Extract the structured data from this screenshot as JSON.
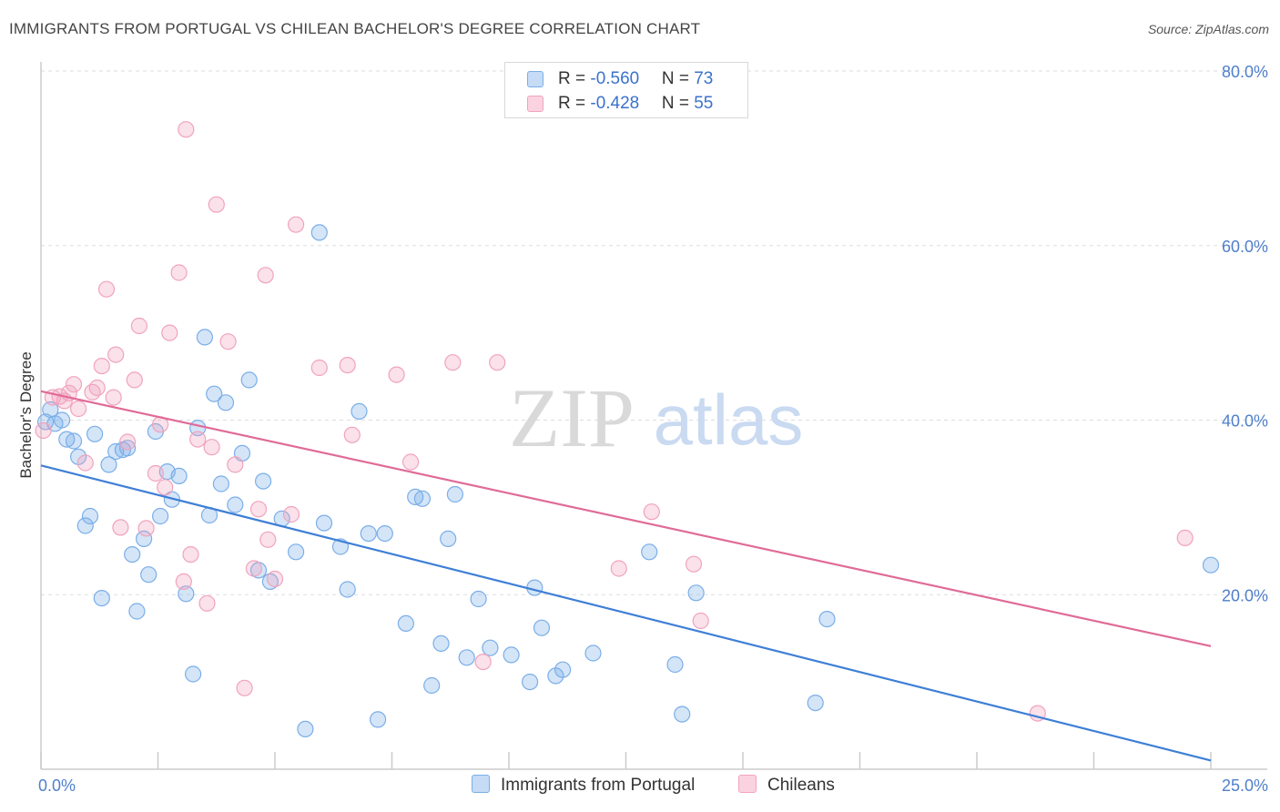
{
  "title": "IMMIGRANTS FROM PORTUGAL VS CHILEAN BACHELOR'S DEGREE CORRELATION CHART",
  "source": "Source: ZipAtlas.com",
  "watermark": {
    "zip": "ZIP",
    "atlas": "atlas"
  },
  "legend": {
    "series": [
      {
        "r_label": "R = ",
        "r_value": "-0.560",
        "n_label": "N = ",
        "n_value": "73"
      },
      {
        "r_label": "R = ",
        "r_value": "-0.428",
        "n_label": "N = ",
        "n_value": "55"
      }
    ]
  },
  "chart_data": {
    "type": "scatter",
    "title": "IMMIGRANTS FROM PORTUGAL VS CHILEAN BACHELOR'S DEGREE CORRELATION CHART",
    "xlabel": "",
    "ylabel": "Bachelor's Degree",
    "xlim": [
      0,
      25
    ],
    "ylim": [
      0,
      80
    ],
    "x_tick_labels": [
      "0.0%",
      "25.0%"
    ],
    "y_ticks": [
      20,
      40,
      60,
      80
    ],
    "y_tick_labels": [
      "20.0%",
      "40.0%",
      "60.0%",
      "80.0%"
    ],
    "grid": true,
    "legend_position": "top-center",
    "series": [
      {
        "name": "Immigrants from Portugal",
        "color": "#7aaee8",
        "line_color": "#3e7fd6",
        "r": -0.56,
        "n": 73,
        "trend": [
          [
            0,
            34.8
          ],
          [
            25,
            1.0
          ]
        ],
        "points": [
          [
            0.1,
            39.8
          ],
          [
            0.2,
            41.2
          ],
          [
            0.3,
            39.6
          ],
          [
            0.45,
            40.0
          ],
          [
            0.55,
            37.8
          ],
          [
            0.7,
            37.6
          ],
          [
            0.8,
            35.8
          ],
          [
            0.95,
            27.9
          ],
          [
            1.05,
            29.0
          ],
          [
            1.15,
            38.4
          ],
          [
            1.3,
            19.6
          ],
          [
            1.45,
            34.9
          ],
          [
            1.6,
            36.4
          ],
          [
            1.75,
            36.6
          ],
          [
            1.85,
            36.8
          ],
          [
            1.95,
            24.6
          ],
          [
            2.05,
            18.1
          ],
          [
            2.2,
            26.4
          ],
          [
            2.3,
            22.3
          ],
          [
            2.45,
            38.7
          ],
          [
            2.55,
            29.0
          ],
          [
            2.7,
            34.1
          ],
          [
            2.8,
            30.9
          ],
          [
            2.95,
            33.6
          ],
          [
            3.1,
            20.1
          ],
          [
            3.25,
            10.9
          ],
          [
            3.35,
            39.1
          ],
          [
            3.5,
            49.5
          ],
          [
            3.6,
            29.1
          ],
          [
            3.7,
            43.0
          ],
          [
            3.85,
            32.7
          ],
          [
            3.95,
            42.0
          ],
          [
            4.15,
            30.3
          ],
          [
            4.3,
            36.2
          ],
          [
            4.45,
            44.6
          ],
          [
            4.65,
            22.8
          ],
          [
            4.75,
            33.0
          ],
          [
            4.9,
            21.5
          ],
          [
            5.15,
            28.7
          ],
          [
            5.45,
            24.9
          ],
          [
            5.65,
            4.6
          ],
          [
            5.95,
            61.5
          ],
          [
            6.05,
            28.2
          ],
          [
            6.4,
            25.5
          ],
          [
            6.55,
            20.6
          ],
          [
            6.8,
            41.0
          ],
          [
            7.0,
            27.0
          ],
          [
            7.2,
            5.7
          ],
          [
            7.35,
            27.0
          ],
          [
            7.8,
            16.7
          ],
          [
            8.0,
            31.2
          ],
          [
            8.15,
            31.0
          ],
          [
            8.35,
            9.6
          ],
          [
            8.55,
            14.4
          ],
          [
            8.7,
            26.4
          ],
          [
            8.85,
            31.5
          ],
          [
            9.1,
            12.8
          ],
          [
            9.35,
            19.5
          ],
          [
            9.6,
            13.9
          ],
          [
            10.05,
            13.1
          ],
          [
            10.45,
            10.0
          ],
          [
            10.55,
            20.8
          ],
          [
            10.7,
            16.2
          ],
          [
            11.0,
            10.7
          ],
          [
            11.15,
            11.4
          ],
          [
            11.8,
            13.3
          ],
          [
            13.0,
            24.9
          ],
          [
            13.55,
            12.0
          ],
          [
            13.7,
            6.3
          ],
          [
            14.0,
            20.2
          ],
          [
            16.55,
            7.6
          ],
          [
            16.8,
            17.2
          ],
          [
            25.0,
            23.4
          ]
        ]
      },
      {
        "name": "Chileans",
        "color": "#f1a3bd",
        "line_color": "#e06b97",
        "r": -0.428,
        "n": 55,
        "trend": [
          [
            0,
            43.3
          ],
          [
            25,
            14.1
          ]
        ],
        "points": [
          [
            0.05,
            38.8
          ],
          [
            0.25,
            42.6
          ],
          [
            0.4,
            42.7
          ],
          [
            0.5,
            42.2
          ],
          [
            0.6,
            43.1
          ],
          [
            0.7,
            44.1
          ],
          [
            0.8,
            41.3
          ],
          [
            0.95,
            35.1
          ],
          [
            1.1,
            43.2
          ],
          [
            1.2,
            43.7
          ],
          [
            1.3,
            46.2
          ],
          [
            1.4,
            55.0
          ],
          [
            1.55,
            42.6
          ],
          [
            1.6,
            47.5
          ],
          [
            1.7,
            27.7
          ],
          [
            1.85,
            37.5
          ],
          [
            2.0,
            44.6
          ],
          [
            2.1,
            50.8
          ],
          [
            2.25,
            27.6
          ],
          [
            2.45,
            33.9
          ],
          [
            2.55,
            39.5
          ],
          [
            2.65,
            32.3
          ],
          [
            2.75,
            50.0
          ],
          [
            2.95,
            56.9
          ],
          [
            3.05,
            21.5
          ],
          [
            3.1,
            73.3
          ],
          [
            3.2,
            24.6
          ],
          [
            3.35,
            37.8
          ],
          [
            3.55,
            19.0
          ],
          [
            3.65,
            36.9
          ],
          [
            3.75,
            64.7
          ],
          [
            4.0,
            49.0
          ],
          [
            4.15,
            34.9
          ],
          [
            4.35,
            9.3
          ],
          [
            4.55,
            23.0
          ],
          [
            4.65,
            29.8
          ],
          [
            4.8,
            56.6
          ],
          [
            4.85,
            26.3
          ],
          [
            5.0,
            21.8
          ],
          [
            5.35,
            29.2
          ],
          [
            5.45,
            62.4
          ],
          [
            5.95,
            46.0
          ],
          [
            6.55,
            46.3
          ],
          [
            6.65,
            38.3
          ],
          [
            7.6,
            45.2
          ],
          [
            7.9,
            35.2
          ],
          [
            8.8,
            46.6
          ],
          [
            9.45,
            12.3
          ],
          [
            9.75,
            46.6
          ],
          [
            12.35,
            23.0
          ],
          [
            13.05,
            29.5
          ],
          [
            13.95,
            23.5
          ],
          [
            14.1,
            17.0
          ],
          [
            21.3,
            6.4
          ],
          [
            24.45,
            26.5
          ]
        ]
      }
    ]
  }
}
